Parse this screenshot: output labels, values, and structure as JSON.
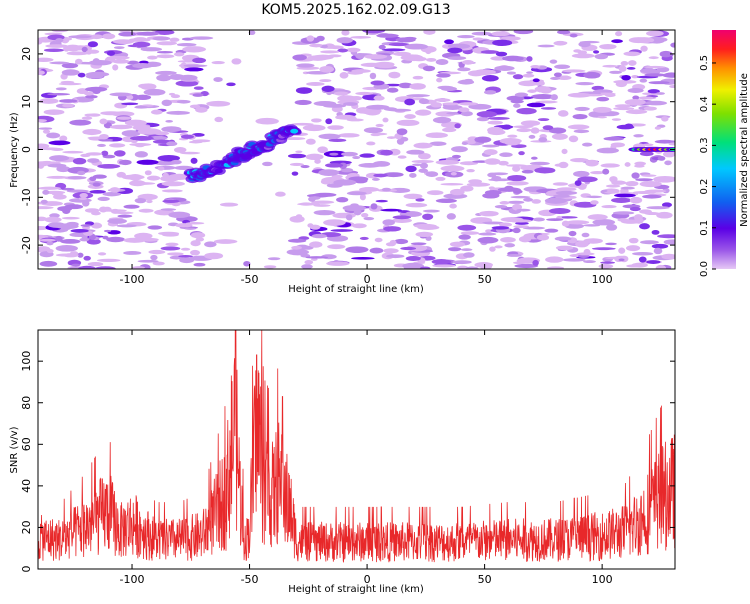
{
  "title": "KOM5.2025.162.02.09.G13",
  "chart_data": [
    {
      "type": "heatmap",
      "xlabel": "Height of straight line (km)",
      "ylabel": "Frequency (Hz)",
      "xlim": [
        -140,
        131
      ],
      "ylim": [
        -25,
        25
      ],
      "xticks": [
        -100,
        -50,
        0,
        50,
        100
      ],
      "yticks": [
        -20,
        -10,
        0,
        10,
        20
      ],
      "colorbar": {
        "label": "Normalized spectral amplitude",
        "range": [
          0,
          0.58
        ],
        "ticks": [
          0.0,
          0.1,
          0.2,
          0.3,
          0.4,
          0.5
        ],
        "colors": [
          "#e6c8f5",
          "#9a55e8",
          "#5a00e6",
          "#1060f0",
          "#00c8ff",
          "#00e07a",
          "#7ee000",
          "#f0f000",
          "#ff9000",
          "#ff1e1e",
          "#f0006e"
        ]
      },
      "features": [
        {
          "name": "sloped echo",
          "x": [
            -75,
            -31
          ],
          "y": [
            -6,
            4
          ],
          "peak_amplitude": 0.25
        },
        {
          "name": "narrow echo",
          "x": [
            115,
            131
          ],
          "y": [
            0,
            0
          ],
          "peak_amplitude": 0.55
        }
      ],
      "blank_band_x": [
        -70,
        -30
      ]
    },
    {
      "type": "line",
      "xlabel": "Height of straight line (km)",
      "ylabel": "SNR (v/v)",
      "xlim": [
        -140,
        131
      ],
      "ylim": [
        0,
        115
      ],
      "xticks": [
        -100,
        -50,
        0,
        50,
        100
      ],
      "yticks": [
        0,
        20,
        40,
        60,
        80,
        100
      ],
      "color": "#e8282a",
      "x": [
        -140,
        -130,
        -120,
        -110,
        -105,
        -100,
        -90,
        -80,
        -70,
        -65,
        -60,
        -58,
        -56,
        -54,
        -52,
        -50,
        -48,
        -46,
        -44,
        -42,
        -40,
        -38,
        -36,
        -34,
        -32,
        -30,
        -28,
        -20,
        0,
        20,
        40,
        60,
        80,
        100,
        110,
        115,
        120,
        125,
        131
      ],
      "y": [
        15,
        14,
        20,
        28,
        18,
        22,
        14,
        14,
        16,
        25,
        35,
        55,
        70,
        35,
        12,
        20,
        55,
        65,
        40,
        38,
        35,
        42,
        38,
        32,
        25,
        14,
        13,
        13,
        13,
        13,
        13,
        14,
        14,
        16,
        18,
        22,
        28,
        34,
        38
      ],
      "peaks": [
        {
          "x": -56,
          "y": 115
        },
        {
          "x": -47,
          "y": 103
        },
        {
          "x": -36,
          "y": 83
        }
      ]
    }
  ]
}
